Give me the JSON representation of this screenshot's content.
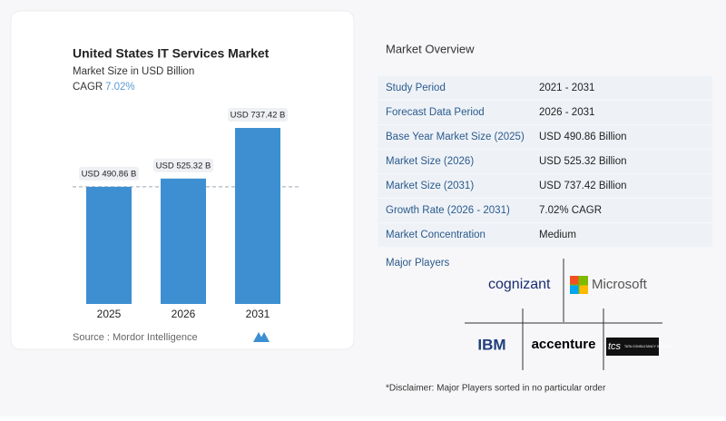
{
  "chart_data": {
    "type": "bar",
    "title": "United States IT Services Market",
    "subtitle": "Market Size in USD Billion",
    "cagr_label": "CAGR",
    "cagr_value": "7.02%",
    "categories": [
      "2025",
      "2026",
      "2031"
    ],
    "values": [
      490.86,
      525.32,
      737.42
    ],
    "value_labels": [
      "USD 490.86 B",
      "USD 525.32 B",
      "USD 737.42 B"
    ],
    "color": "#3d8fd1",
    "source": "Source :  Mordor Intelligence"
  },
  "overview": {
    "title": "Market Overview",
    "rows": [
      [
        "Study Period",
        "2021 - 2031"
      ],
      [
        "Forecast Data Period",
        "2026 - 2031"
      ],
      [
        "Base Year Market Size (2025)",
        "USD 490.86 Billion"
      ],
      [
        "Market Size (2026)",
        "USD 525.32 Billion"
      ],
      [
        "Market Size (2031)",
        "USD 737.42 Billion"
      ],
      [
        "Growth Rate (2026 - 2031)",
        "7.02% CAGR"
      ],
      [
        "Market Concentration",
        "Medium"
      ]
    ],
    "players_title": "Major Players",
    "players": [
      "cognizant",
      "Microsoft",
      "IBM",
      "accenture",
      "tcs",
      "TATA CONSULTANCY SERVICES"
    ],
    "disclaimer": "*Disclaimer: Major Players sorted in no particular order"
  }
}
